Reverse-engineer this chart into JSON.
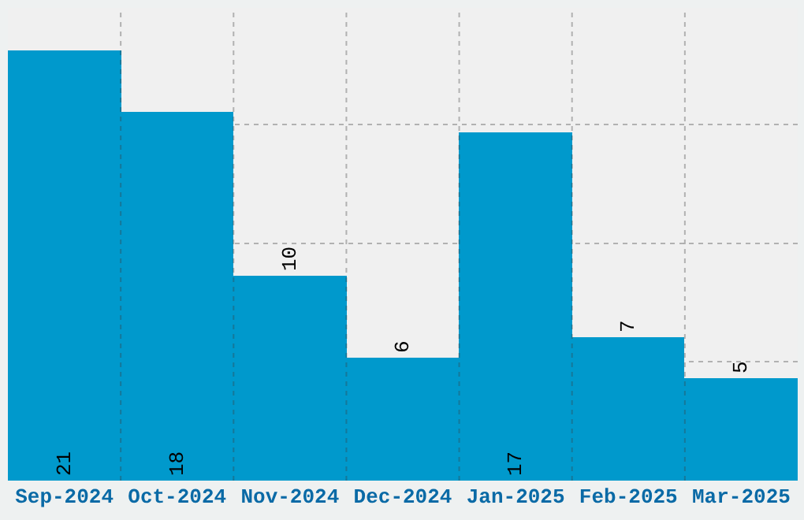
{
  "chart_data": {
    "type": "bar",
    "categories": [
      "Sep-2024",
      "Oct-2024",
      "Nov-2024",
      "Dec-2024",
      "Jan-2025",
      "Feb-2025",
      "Mar-2025"
    ],
    "values": [
      21,
      18,
      10,
      6,
      17,
      7,
      5
    ],
    "color": "#0099cc",
    "ylim": [
      0,
      23.1
    ],
    "yticks": [
      {
        "value": 5.8,
        "label": null
      },
      {
        "value": 11.6,
        "label": null
      },
      {
        "value": 17.4,
        "label": null
      }
    ],
    "tick_labels": "x",
    "grid": true,
    "data_labels": true
  }
}
